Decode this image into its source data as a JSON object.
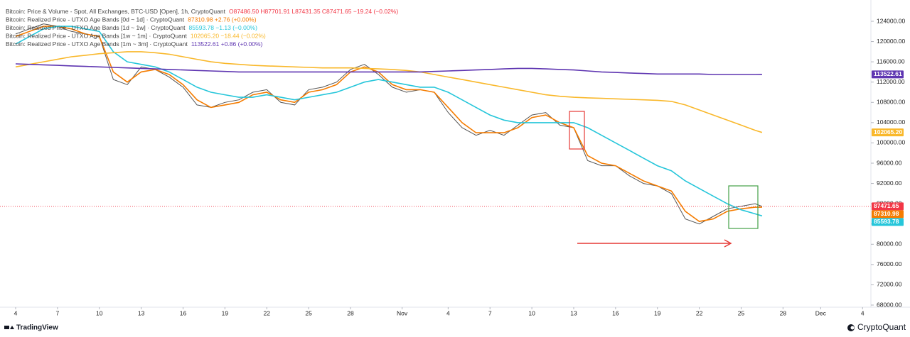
{
  "chart_data": {
    "type": "line",
    "x": [
      0,
      1,
      2,
      3,
      4,
      5,
      6,
      7,
      8,
      9,
      10,
      11,
      12,
      13,
      14,
      15,
      16,
      17,
      18,
      19,
      20,
      21,
      22,
      23,
      24,
      25,
      26,
      27,
      28,
      29,
      30,
      31,
      32,
      33,
      34,
      35,
      36,
      37,
      38,
      39,
      40,
      41,
      42,
      43,
      44,
      45,
      46,
      47,
      48,
      49,
      50,
      51,
      52,
      53,
      53.5
    ],
    "xlim": [
      -1.12,
      61.3
    ],
    "xticks": [
      {
        "value": 0,
        "label": "4"
      },
      {
        "value": 3,
        "label": "7"
      },
      {
        "value": 6,
        "label": "10"
      },
      {
        "value": 9,
        "label": "13"
      },
      {
        "value": 12,
        "label": "16"
      },
      {
        "value": 15,
        "label": "19"
      },
      {
        "value": 18,
        "label": "22"
      },
      {
        "value": 21,
        "label": "25"
      },
      {
        "value": 24,
        "label": "28"
      },
      {
        "value": 27.7,
        "label": "Nov"
      },
      {
        "value": 31,
        "label": "4"
      },
      {
        "value": 34,
        "label": "7"
      },
      {
        "value": 37,
        "label": "10"
      },
      {
        "value": 40,
        "label": "13"
      },
      {
        "value": 43,
        "label": "16"
      },
      {
        "value": 46,
        "label": "19"
      },
      {
        "value": 49,
        "label": "22"
      },
      {
        "value": 52,
        "label": "25"
      },
      {
        "value": 55,
        "label": "28"
      },
      {
        "value": 57.7,
        "label": "Dec"
      },
      {
        "value": 60.7,
        "label": "4"
      }
    ],
    "ylim": [
      66600,
      128200
    ],
    "yticks": [
      {
        "value": 68000,
        "label": "68000.00"
      },
      {
        "value": 72000,
        "label": "72000.00"
      },
      {
        "value": 76000,
        "label": "76000.00"
      },
      {
        "value": 80000,
        "label": "80000.00"
      },
      {
        "value": 84000,
        "label": "84000.00"
      },
      {
        "value": 88000,
        "label": "88000.00"
      },
      {
        "value": 92000,
        "label": "92000.00"
      },
      {
        "value": 96000,
        "label": "96000.00"
      },
      {
        "value": 100000,
        "label": "100000.00"
      },
      {
        "value": 104000,
        "label": "104000.00"
      },
      {
        "value": 108000,
        "label": "108000.00"
      },
      {
        "value": 112000,
        "label": "112000.00"
      },
      {
        "value": 116000,
        "label": "116000.00"
      },
      {
        "value": 120000,
        "label": "120000.00"
      },
      {
        "value": 124000,
        "label": "124000.00"
      }
    ],
    "grid": false,
    "series": [
      {
        "name": "Bitcoin: Price & Volume - Spot, All Exchanges, BTC-USD [Open], 1h, CryptoQuant",
        "legend_values": "O87486.50  H87701.91  L87431.35  C87471.65  −19.24 (−0.02%)",
        "color": "#555555",
        "badge_color": "#f23645",
        "badge": "87471.65",
        "last_line": true,
        "values": [
          121500,
          122500,
          123500,
          123000,
          122000,
          121500,
          121000,
          112500,
          111500,
          115000,
          114500,
          113000,
          111000,
          107500,
          107000,
          108000,
          108500,
          110000,
          110500,
          108000,
          107500,
          110500,
          111000,
          112000,
          114500,
          115500,
          113500,
          111000,
          110000,
          110500,
          110000,
          106000,
          103000,
          101500,
          102500,
          101500,
          103500,
          105500,
          106000,
          103500,
          103000,
          96500,
          95500,
          95500,
          93500,
          92000,
          91500,
          90000,
          85000,
          84000,
          85500,
          87000,
          87500,
          88000,
          87471.65
        ]
      },
      {
        "name": "Bitcoin: Realized Price - UTXO Age Bands [0d ~ 1d] · CryptoQuant",
        "legend_values": "87310.98  +2.76 (+0.00%)",
        "color": "#f57c00",
        "badge_color": "#f57c00",
        "badge": "87310.98",
        "values": [
          121000,
          122000,
          123000,
          123000,
          122500,
          121500,
          121000,
          114000,
          112000,
          114000,
          114500,
          113500,
          111500,
          108500,
          107000,
          107500,
          108000,
          109500,
          110000,
          108500,
          108000,
          110000,
          110500,
          111500,
          114000,
          115000,
          114000,
          111500,
          110500,
          110500,
          110000,
          107000,
          104000,
          102000,
          102000,
          102000,
          103000,
          105000,
          105500,
          104000,
          103000,
          97500,
          96000,
          95500,
          94000,
          92500,
          91500,
          90500,
          86500,
          84500,
          85000,
          86500,
          87000,
          87300,
          87310.98
        ]
      },
      {
        "name": "Bitcoin: Realized Price - UTXO Age Bands [1d ~ 1w] · CryptoQuant",
        "legend_values": "85593.78  −1.13 (−0.00%)",
        "color": "#26c6da",
        "badge_color": "#26c6da",
        "badge": "85593.78",
        "values": [
          119500,
          121000,
          122500,
          123000,
          123000,
          122500,
          122000,
          118000,
          116000,
          115500,
          115000,
          114000,
          112500,
          111000,
          110000,
          109500,
          109000,
          109000,
          109500,
          109000,
          108500,
          109000,
          109500,
          110000,
          111000,
          112000,
          112500,
          112000,
          111500,
          111000,
          111000,
          110000,
          108500,
          107000,
          105500,
          104500,
          104000,
          104000,
          104000,
          104000,
          104000,
          103000,
          101500,
          100000,
          98500,
          97000,
          95500,
          94500,
          92500,
          91000,
          89500,
          88000,
          86800,
          86000,
          85593.78
        ]
      },
      {
        "name": "Bitcoin: Realized Price - UTXO Age Bands [1w ~ 1m] · CryptoQuant",
        "legend_values": "102065.20  −18.44 (−0.02%)",
        "color": "#f9b82b",
        "badge_color": "#f9b82b",
        "badge": "102065.20",
        "values": [
          115000,
          115500,
          116000,
          116500,
          117000,
          117300,
          117600,
          117800,
          118000,
          118000,
          117800,
          117500,
          117000,
          116500,
          116000,
          115700,
          115500,
          115300,
          115200,
          115100,
          115000,
          114900,
          114800,
          114800,
          114800,
          114700,
          114600,
          114500,
          114300,
          114000,
          113500,
          113000,
          112500,
          112000,
          111500,
          111000,
          110500,
          110000,
          109500,
          109200,
          109000,
          108900,
          108800,
          108700,
          108600,
          108500,
          108400,
          108200,
          107500,
          106500,
          105500,
          104500,
          103500,
          102500,
          102065.2
        ]
      },
      {
        "name": "Bitcoin: Realized Price - UTXO Age Bands [1m ~ 3m] · CryptoQuant",
        "legend_values": "113522.61  +0.86 (+0.00%)",
        "color": "#5e35b1",
        "badge_color": "#5e35b1",
        "badge": "113522.61",
        "values": [
          115600,
          115500,
          115400,
          115300,
          115200,
          115100,
          115000,
          114900,
          114800,
          114700,
          114600,
          114500,
          114400,
          114300,
          114200,
          114100,
          114000,
          114000,
          114000,
          114000,
          114000,
          114000,
          114000,
          114000,
          114000,
          114000,
          114000,
          114000,
          114000,
          114000,
          114100,
          114200,
          114300,
          114400,
          114500,
          114600,
          114700,
          114700,
          114600,
          114500,
          114400,
          114200,
          114000,
          113900,
          113800,
          113700,
          113600,
          113600,
          113600,
          113600,
          113500,
          113500,
          113500,
          113500,
          113522.61
        ]
      }
    ]
  },
  "footer": {
    "left": "TradingView",
    "right": "CryptoQuant"
  }
}
